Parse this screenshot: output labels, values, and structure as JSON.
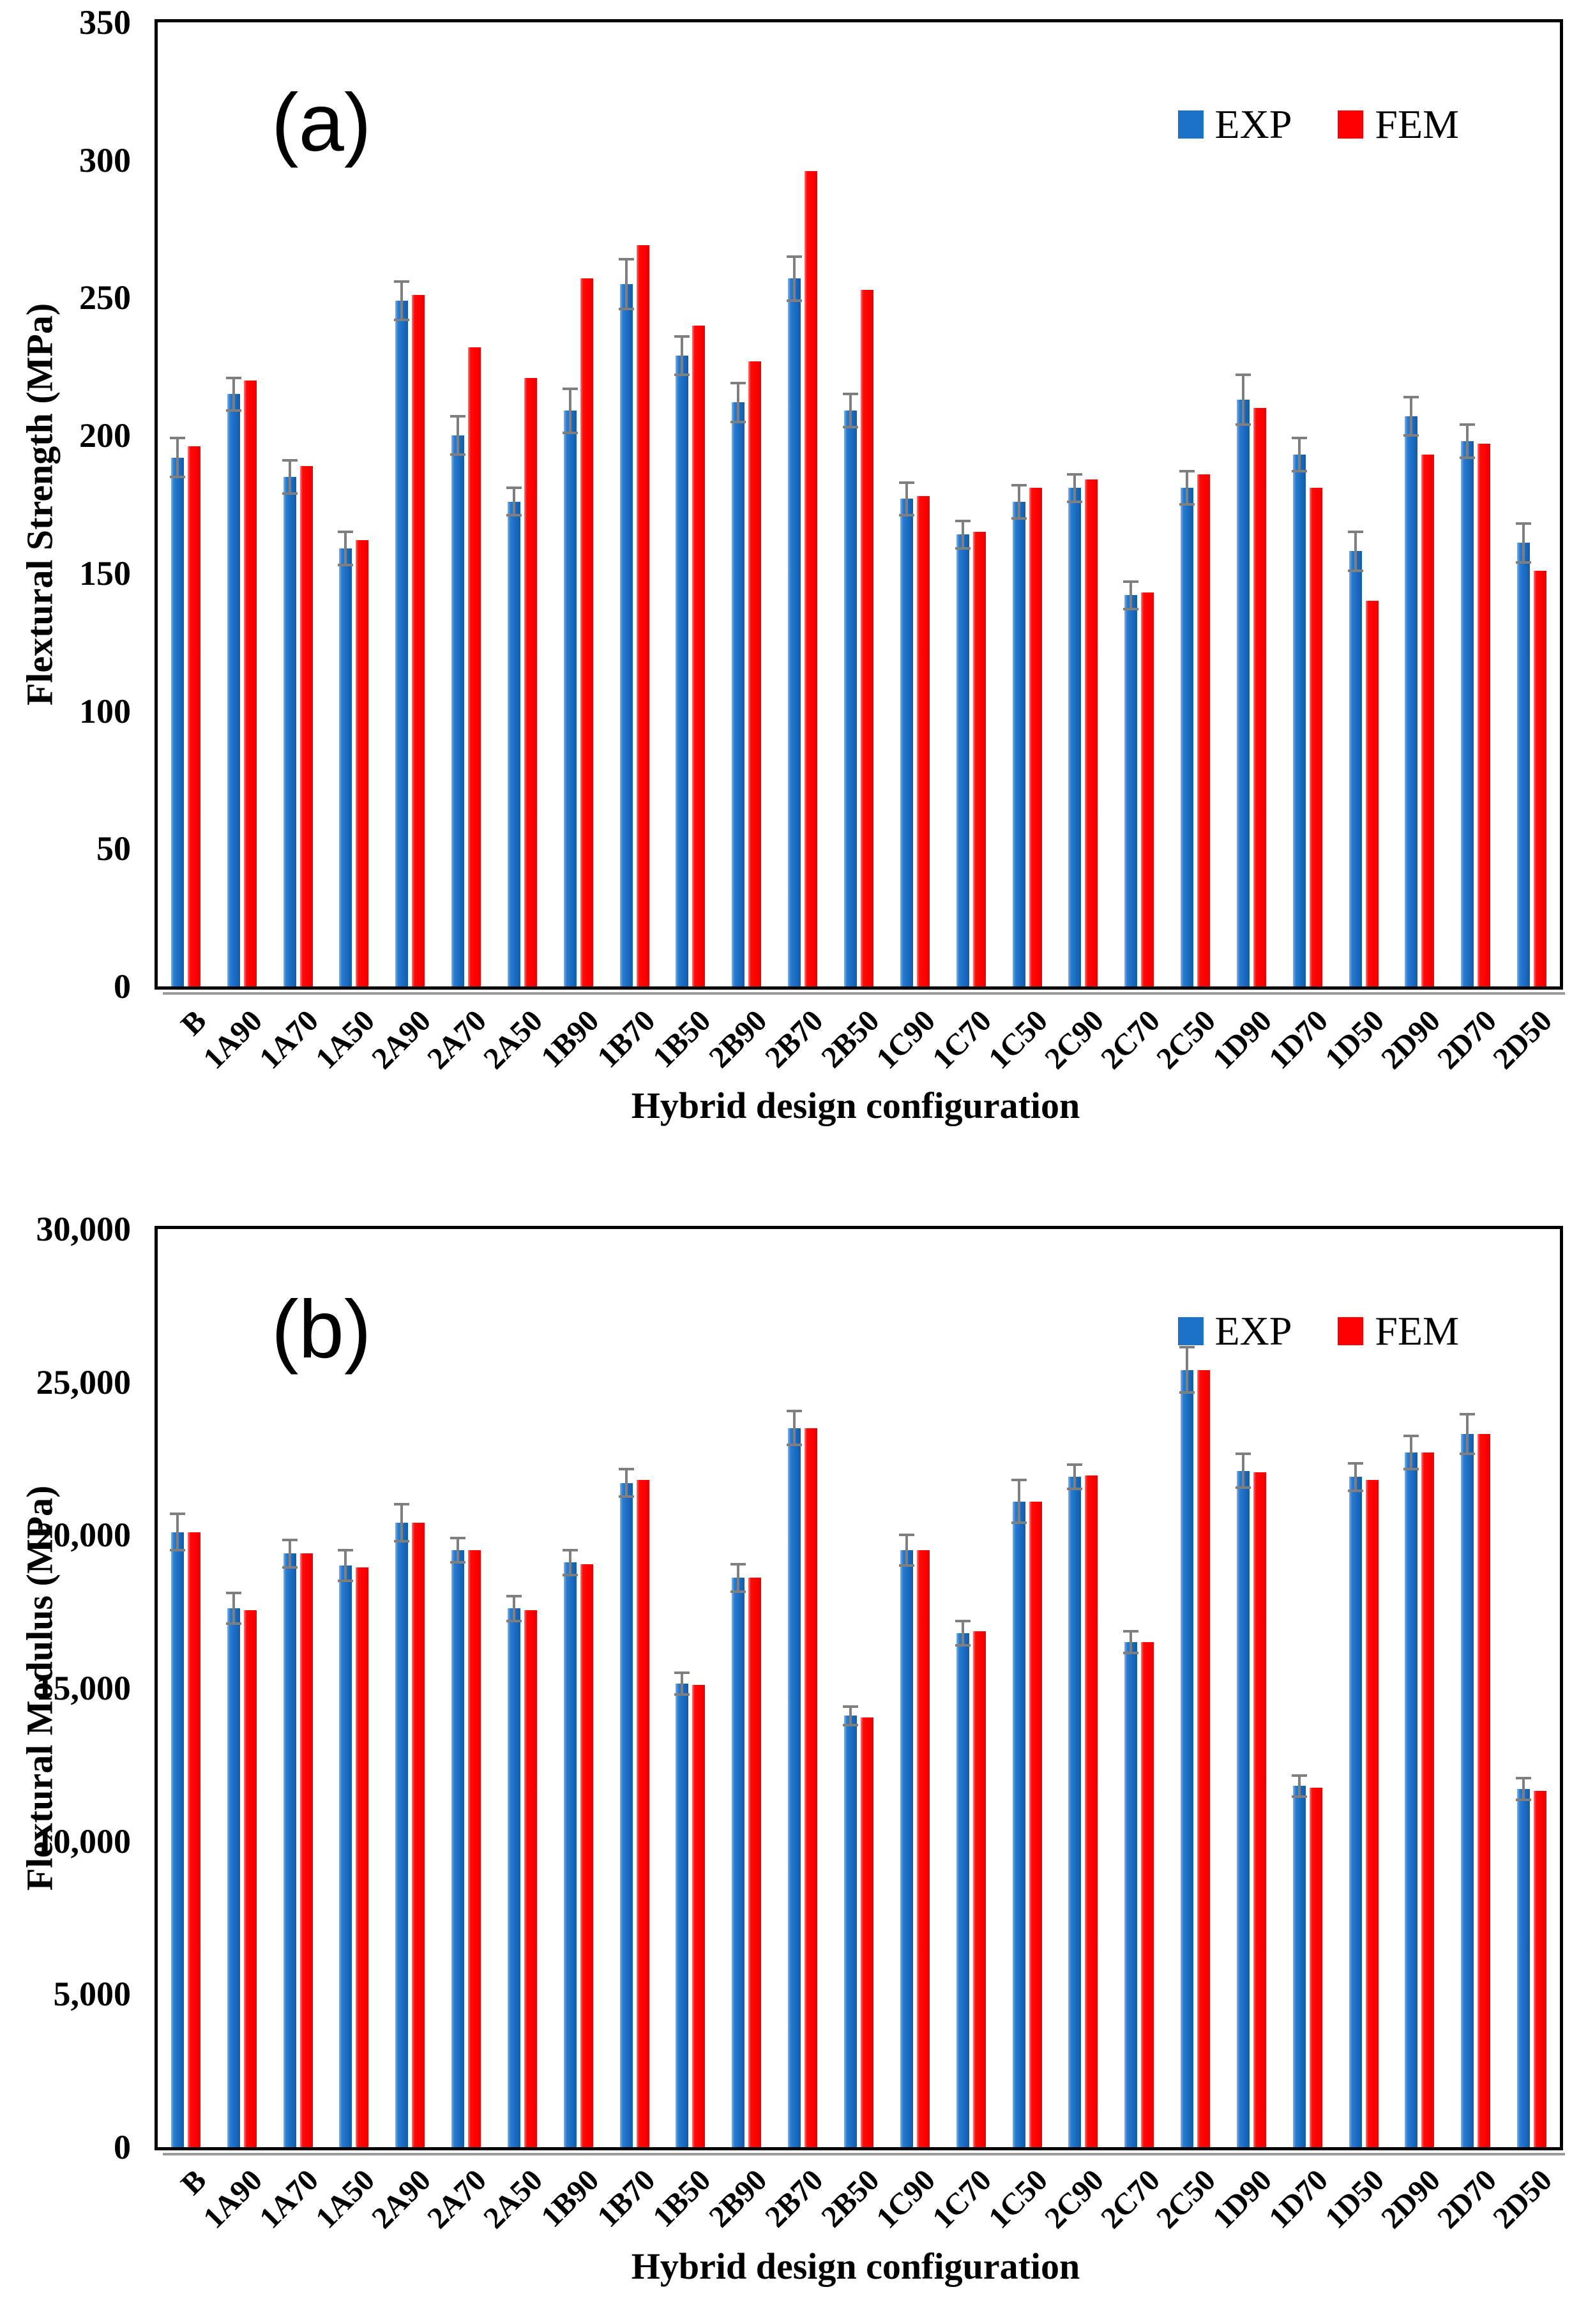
{
  "figure": {
    "background": "#ffffff",
    "panels": [
      "a",
      "b"
    ]
  },
  "colors": {
    "exp_bar": "#1b72c6",
    "fem_bar": "#fe0000",
    "error_bar": "#7f7f7f",
    "axis": "#000000"
  },
  "chart_data": [
    {
      "panel": "a",
      "type": "bar",
      "title": "(a)",
      "xlabel": "Hybrid design configuration",
      "ylabel": "Flextural Strength (MPa)",
      "ylim": [
        0,
        350
      ],
      "yticks": [
        0,
        50,
        100,
        150,
        200,
        250,
        300,
        350
      ],
      "ytick_labels": [
        "0",
        "50",
        "100",
        "150",
        "200",
        "250",
        "300",
        "350"
      ],
      "grid": false,
      "legend_position": "top-right",
      "categories": [
        "B",
        "1A90",
        "1A70",
        "1A50",
        "2A90",
        "2A70",
        "2A50",
        "1B90",
        "1B70",
        "1B50",
        "2B90",
        "2B70",
        "2B50",
        "1C90",
        "1C70",
        "1C50",
        "2C90",
        "2C70",
        "2C50",
        "1D90",
        "1D70",
        "1D50",
        "2D90",
        "2D70",
        "2D50"
      ],
      "series": [
        {
          "name": "EXP",
          "color": "#1b72c6",
          "values": [
            192,
            215,
            185,
            159,
            249,
            200,
            176,
            209,
            255,
            229,
            212,
            257,
            209,
            177,
            164,
            176,
            181,
            142,
            181,
            213,
            193,
            158,
            207,
            198,
            161
          ],
          "errors": [
            7,
            6,
            6,
            6,
            7,
            7,
            5,
            8,
            9,
            7,
            7,
            8,
            6,
            6,
            5,
            6,
            5,
            5,
            6,
            9,
            6,
            7,
            7,
            6,
            7
          ]
        },
        {
          "name": "FEM",
          "color": "#fe0000",
          "values": [
            196,
            220,
            189,
            162,
            251,
            232,
            221,
            257,
            269,
            240,
            227,
            296,
            253,
            178,
            165,
            181,
            184,
            143,
            186,
            210,
            181,
            140,
            193,
            197,
            151
          ]
        }
      ]
    },
    {
      "panel": "b",
      "type": "bar",
      "title": "(b)",
      "xlabel": "Hybrid design configuration",
      "ylabel": "Flextural Modulus (MPa)",
      "ylim": [
        0,
        30000
      ],
      "yticks": [
        0,
        5000,
        10000,
        15000,
        20000,
        25000,
        30000
      ],
      "ytick_labels": [
        "0",
        "5,000",
        "10,000",
        "15,000",
        "20,000",
        "25,000",
        "30,000"
      ],
      "grid": false,
      "legend_position": "top-right",
      "categories": [
        "B",
        "1A90",
        "1A70",
        "1A50",
        "2A90",
        "2A70",
        "2A50",
        "1B90",
        "1B70",
        "1B50",
        "2B90",
        "2B70",
        "2B50",
        "1C90",
        "1C70",
        "1C50",
        "2C90",
        "2C70",
        "2C50",
        "1D90",
        "1D70",
        "1D50",
        "2D90",
        "2D70",
        "2D50"
      ],
      "series": [
        {
          "name": "EXP",
          "color": "#1b72c6",
          "values": [
            20100,
            17600,
            19400,
            19000,
            20400,
            19500,
            17600,
            19100,
            21700,
            15150,
            18600,
            23500,
            14100,
            19500,
            16800,
            21100,
            21900,
            16500,
            25400,
            22100,
            11800,
            21900,
            22700,
            23300,
            11700
          ],
          "errors": [
            600,
            500,
            450,
            500,
            600,
            400,
            400,
            400,
            450,
            350,
            450,
            550,
            300,
            500,
            400,
            700,
            400,
            350,
            750,
            550,
            350,
            450,
            550,
            650,
            350
          ]
        },
        {
          "name": "FEM",
          "color": "#fe0000",
          "values": [
            20100,
            17550,
            19400,
            18950,
            20400,
            19500,
            17550,
            19050,
            21800,
            15100,
            18600,
            23500,
            14050,
            19500,
            16850,
            21100,
            21950,
            16500,
            25400,
            22050,
            11750,
            21800,
            22700,
            23300,
            11650
          ]
        }
      ]
    }
  ]
}
